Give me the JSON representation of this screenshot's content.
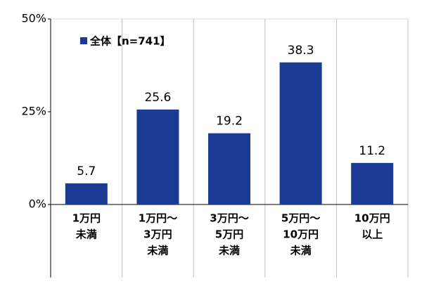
{
  "chart_data": {
    "type": "bar",
    "categories": [
      [
        "1万円",
        "未満"
      ],
      [
        "1万円～",
        "3万円",
        "未満"
      ],
      [
        "3万円～",
        "5万円",
        "未満"
      ],
      [
        "5万円～",
        "10万円",
        "未満"
      ],
      [
        "10万円",
        "以上"
      ]
    ],
    "series": [
      {
        "name": "全体【n=741】",
        "color": "#1b3a94",
        "values": [
          5.7,
          25.6,
          19.2,
          38.3,
          11.2
        ]
      }
    ],
    "ylim": [
      0,
      50
    ],
    "yticks": [
      {
        "value": 0,
        "label": "0%"
      },
      {
        "value": 25,
        "label": "25%"
      },
      {
        "value": 50,
        "label": "50%"
      }
    ],
    "legend": "upper-left"
  }
}
